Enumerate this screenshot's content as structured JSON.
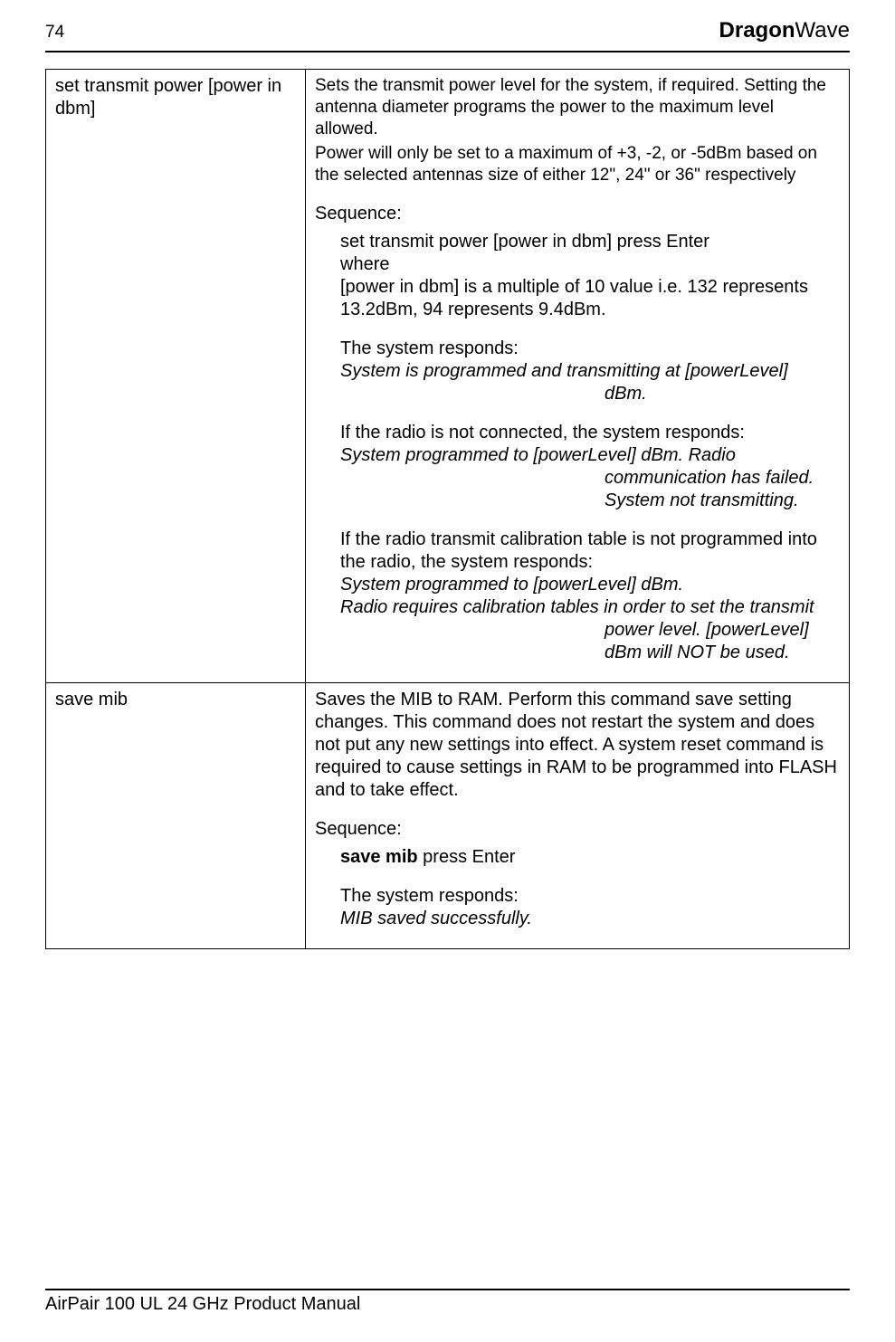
{
  "header": {
    "page_number": "74",
    "brand_bold": "Dragon",
    "brand_light": "Wave"
  },
  "rows": [
    {
      "command": "set transmit power [power in dbm]",
      "intro1": "Sets the transmit power level for the system, if required.  Setting the antenna diameter programs the power to the maximum level allowed.",
      "intro2": " Power will only be set to a maximum of +3, -2, or -5dBm based on the selected antennas size of either 12\", 24\" or 36\" respectively",
      "sequence_label": "Sequence:",
      "seq_line1": "set transmit power [power in dbm] press Enter",
      "seq_line2": "where",
      "seq_line3": "[power in dbm] is a multiple of 10 value i.e. 132 represents 13.2dBm, 94 represents 9.4dBm.",
      "responds1_label": "The system responds:",
      "responds1_line1": "System is programmed and transmitting at [powerLevel]",
      "responds1_line2": "dBm.",
      "cond2_label": "If the radio is not connected, the system responds:",
      "cond2_line1": "System programmed to [powerLevel] dBm. Radio",
      "cond2_line2": "communication has failed.",
      "cond2_line3": "System not transmitting.",
      "cond3_label": "If the radio transmit calibration table is not programmed into the radio, the system responds:",
      "cond3_line1": "System programmed to [powerLevel] dBm.",
      "cond3_line2": "Radio requires calibration tables in order to set the transmit",
      "cond3_line3": "power level. [powerLevel]",
      "cond3_line4": "dBm will NOT be used."
    },
    {
      "command": "save mib",
      "intro1": "Saves the MIB to RAM. Perform this command save setting changes. This command does not restart the system and does not put any new settings into effect. A system reset command is required to cause settings in RAM to be programmed into FLASH and to take effect.",
      "sequence_label": "Sequence:",
      "seq_bold": "save mib",
      "seq_rest": " press Enter",
      "responds_label": "The system responds:",
      "responds_line": "MIB saved successfully."
    }
  ],
  "footer": {
    "text": "AirPair 100 UL 24 GHz Product Manual"
  }
}
